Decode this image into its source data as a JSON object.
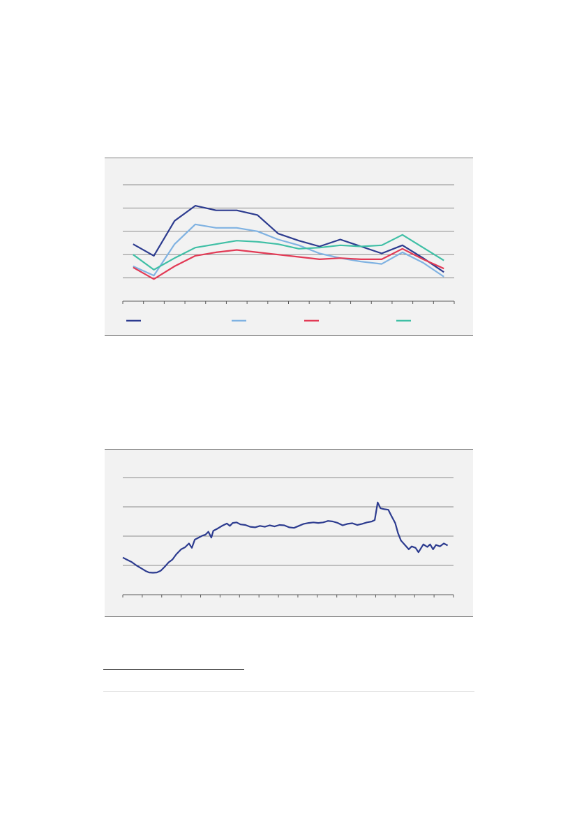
{
  "colors": {
    "dark_blue": "#2c3b8f",
    "light_blue": "#7fb2e2",
    "red": "#e23a55",
    "teal": "#3fbfa5",
    "gridline": "#8c8c8c",
    "axis": "#595959",
    "panel_background": "#f2f2f2"
  },
  "chart_data": [
    {
      "type": "line",
      "grid": true,
      "legend_placement": "bottom",
      "ylim": [
        0,
        5
      ],
      "gridline_count": 5,
      "x_tick_count": 16,
      "x": [
        0,
        1,
        2,
        3,
        4,
        5,
        6,
        7,
        8,
        9,
        10,
        11,
        12,
        13,
        14,
        15
      ],
      "series": [
        {
          "color_key": "dark_blue",
          "values": [
            2.45,
            1.95,
            3.45,
            4.1,
            3.9,
            3.9,
            3.7,
            2.9,
            2.6,
            2.35,
            2.65,
            2.35,
            2.05,
            2.4,
            1.85,
            1.25
          ]
        },
        {
          "color_key": "light_blue",
          "values": [
            1.5,
            1.1,
            2.45,
            3.3,
            3.15,
            3.15,
            3.0,
            2.65,
            2.4,
            2.05,
            1.85,
            1.7,
            1.6,
            2.1,
            1.65,
            1.05
          ]
        },
        {
          "color_key": "red",
          "values": [
            1.45,
            0.95,
            1.5,
            1.95,
            2.1,
            2.2,
            2.1,
            2.0,
            1.9,
            1.8,
            1.85,
            1.8,
            1.8,
            2.25,
            1.8,
            1.4
          ]
        },
        {
          "color_key": "teal",
          "values": [
            2.0,
            1.35,
            1.85,
            2.3,
            2.45,
            2.6,
            2.55,
            2.45,
            2.25,
            2.3,
            2.4,
            2.35,
            2.4,
            2.85,
            2.3,
            1.75
          ]
        }
      ]
    },
    {
      "type": "line",
      "grid": true,
      "ylim": [
        0,
        4
      ],
      "gridline_count": 4,
      "x_tick_count": 17,
      "x_range": [
        0,
        17
      ],
      "series": [
        {
          "color_key": "dark_blue",
          "points": [
            [
              0.0,
              1.27
            ],
            [
              0.2,
              1.2
            ],
            [
              0.45,
              1.12
            ],
            [
              0.7,
              1.0
            ],
            [
              0.95,
              0.9
            ],
            [
              1.2,
              0.8
            ],
            [
              1.35,
              0.76
            ],
            [
              1.55,
              0.75
            ],
            [
              1.75,
              0.76
            ],
            [
              1.95,
              0.82
            ],
            [
              2.15,
              0.95
            ],
            [
              2.35,
              1.1
            ],
            [
              2.55,
              1.2
            ],
            [
              2.75,
              1.38
            ],
            [
              3.0,
              1.55
            ],
            [
              3.2,
              1.62
            ],
            [
              3.4,
              1.75
            ],
            [
              3.55,
              1.6
            ],
            [
              3.7,
              1.88
            ],
            [
              3.9,
              1.95
            ],
            [
              4.1,
              2.02
            ],
            [
              4.25,
              2.05
            ],
            [
              4.4,
              2.15
            ],
            [
              4.55,
              1.95
            ],
            [
              4.65,
              2.18
            ],
            [
              4.85,
              2.25
            ],
            [
              5.1,
              2.35
            ],
            [
              5.35,
              2.43
            ],
            [
              5.5,
              2.35
            ],
            [
              5.65,
              2.45
            ],
            [
              5.85,
              2.47
            ],
            [
              6.05,
              2.4
            ],
            [
              6.3,
              2.38
            ],
            [
              6.55,
              2.32
            ],
            [
              6.8,
              2.3
            ],
            [
              7.05,
              2.35
            ],
            [
              7.3,
              2.32
            ],
            [
              7.55,
              2.37
            ],
            [
              7.8,
              2.33
            ],
            [
              8.05,
              2.38
            ],
            [
              8.3,
              2.37
            ],
            [
              8.55,
              2.3
            ],
            [
              8.8,
              2.28
            ],
            [
              9.05,
              2.35
            ],
            [
              9.3,
              2.42
            ],
            [
              9.55,
              2.45
            ],
            [
              9.8,
              2.47
            ],
            [
              10.05,
              2.45
            ],
            [
              10.3,
              2.47
            ],
            [
              10.55,
              2.52
            ],
            [
              10.8,
              2.5
            ],
            [
              11.05,
              2.45
            ],
            [
              11.3,
              2.37
            ],
            [
              11.55,
              2.42
            ],
            [
              11.8,
              2.44
            ],
            [
              12.05,
              2.38
            ],
            [
              12.3,
              2.42
            ],
            [
              12.55,
              2.47
            ],
            [
              12.8,
              2.5
            ],
            [
              12.95,
              2.55
            ],
            [
              13.1,
              3.15
            ],
            [
              13.25,
              2.95
            ],
            [
              13.45,
              2.92
            ],
            [
              13.65,
              2.9
            ],
            [
              13.8,
              2.7
            ],
            [
              14.0,
              2.45
            ],
            [
              14.15,
              2.1
            ],
            [
              14.3,
              1.85
            ],
            [
              14.5,
              1.7
            ],
            [
              14.7,
              1.55
            ],
            [
              14.85,
              1.65
            ],
            [
              15.05,
              1.6
            ],
            [
              15.2,
              1.45
            ],
            [
              15.45,
              1.72
            ],
            [
              15.65,
              1.63
            ],
            [
              15.8,
              1.72
            ],
            [
              15.95,
              1.55
            ],
            [
              16.1,
              1.7
            ],
            [
              16.3,
              1.65
            ],
            [
              16.5,
              1.75
            ],
            [
              16.7,
              1.68
            ]
          ]
        }
      ]
    }
  ]
}
